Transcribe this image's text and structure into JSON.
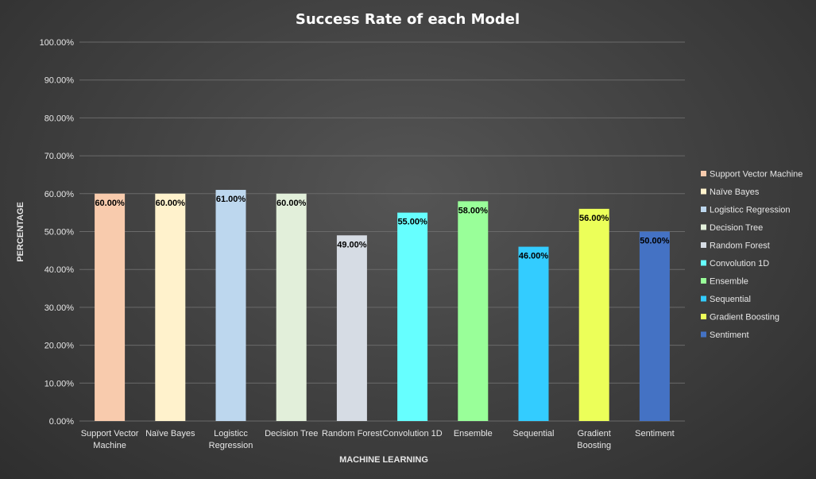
{
  "chart_data": {
    "type": "bar",
    "title": "Success Rate of each Model",
    "xlabel": "MACHINE LEARNING",
    "ylabel": "PERCENTAGE",
    "ylim": [
      0,
      100
    ],
    "yticks": [
      "0.00%",
      "10.00%",
      "20.00%",
      "30.00%",
      "40.00%",
      "50.00%",
      "60.00%",
      "70.00%",
      "80.00%",
      "90.00%",
      "100.00%"
    ],
    "categories": [
      [
        "Support Vector",
        "Machine"
      ],
      [
        "Naïve Bayes"
      ],
      [
        "Logisticc",
        "Regression"
      ],
      [
        "Decision Tree"
      ],
      [
        "Random Forest"
      ],
      [
        "Convolution 1D"
      ],
      [
        "Ensemble"
      ],
      [
        "Sequential"
      ],
      [
        "Gradient",
        "Boosting"
      ],
      [
        "Sentiment"
      ]
    ],
    "values": [
      60,
      60,
      61,
      60,
      49,
      55,
      58,
      46,
      56,
      50
    ],
    "data_labels": [
      "60.00%",
      "60.00%",
      "61.00%",
      "60.00%",
      "49.00%",
      "55.00%",
      "58.00%",
      "46.00%",
      "56.00%",
      "50.00%"
    ],
    "colors": [
      "#f8cbad",
      "#fff2cc",
      "#bdd7ee",
      "#e2efda",
      "#d6dce4",
      "#66ffff",
      "#99ff99",
      "#33ccff",
      "#ecff59",
      "#4472c4"
    ],
    "legend": {
      "position": "right",
      "entries": [
        "Support Vector Machine",
        "Naïve Bayes",
        "Logisticc Regression",
        "Decision Tree",
        "Random Forest",
        "Convolution 1D",
        "Ensemble",
        "Sequential",
        "Gradient Boosting",
        "Sentiment"
      ]
    },
    "grid": true
  }
}
